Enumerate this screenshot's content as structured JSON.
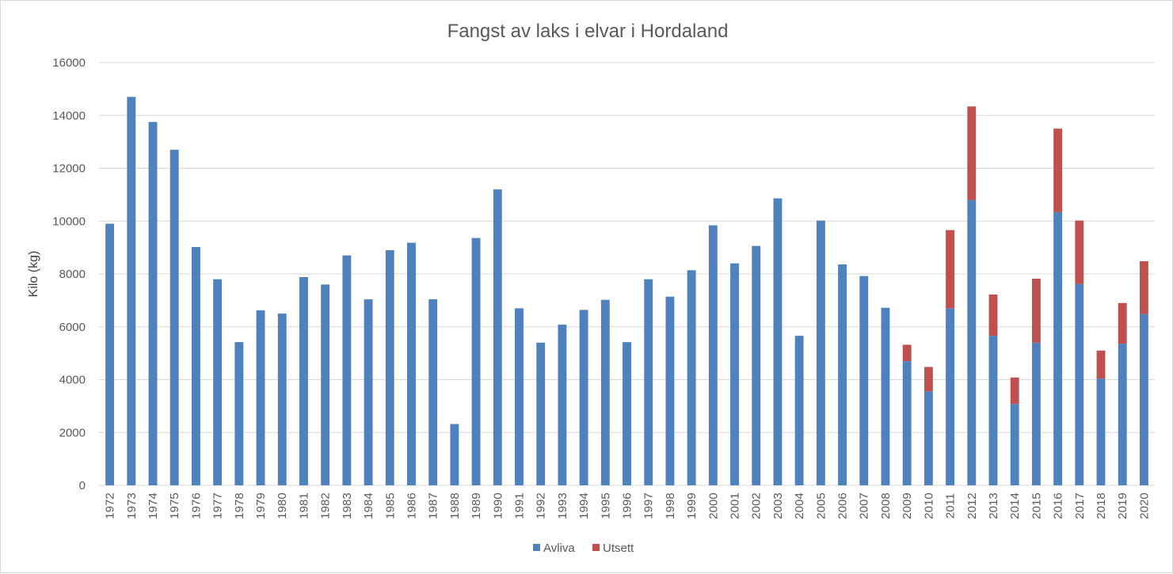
{
  "chart_data": {
    "type": "bar",
    "stacked": true,
    "title": "Fangst av laks i elvar i Hordaland",
    "xlabel": "",
    "ylabel": "Kilo (kg)",
    "ylim": [
      0,
      16000
    ],
    "yticks": [
      0,
      2000,
      4000,
      6000,
      8000,
      10000,
      12000,
      14000,
      16000
    ],
    "grid": true,
    "legend_position": "bottom",
    "categories": [
      "1972",
      "1973",
      "1974",
      "1975",
      "1976",
      "1977",
      "1978",
      "1979",
      "1980",
      "1981",
      "1982",
      "1983",
      "1984",
      "1985",
      "1986",
      "1987",
      "1988",
      "1989",
      "1990",
      "1991",
      "1992",
      "1993",
      "1994",
      "1995",
      "1996",
      "1997",
      "1998",
      "1999",
      "2000",
      "2001",
      "2002",
      "2003",
      "2004",
      "2005",
      "2006",
      "2007",
      "2008",
      "2009",
      "2010",
      "2011",
      "2012",
      "2013",
      "2014",
      "2015",
      "2016",
      "2017",
      "2018",
      "2019",
      "2020"
    ],
    "series": [
      {
        "name": "Avliva",
        "color": "#4f81bd",
        "values": [
          9900,
          14700,
          13750,
          12700,
          9020,
          7800,
          5420,
          6620,
          6500,
          7880,
          7600,
          8700,
          7040,
          8900,
          9180,
          7040,
          2320,
          9360,
          11200,
          6700,
          5400,
          6080,
          6640,
          7020,
          5420,
          7800,
          7140,
          8140,
          9840,
          8400,
          9060,
          10860,
          5660,
          10020,
          8360,
          7920,
          6720,
          4700,
          3560,
          6700,
          10800,
          5660,
          3080,
          5400,
          10340,
          7620,
          4040,
          5360,
          6480
        ]
      },
      {
        "name": "Utsett",
        "color": "#c0504d",
        "values": [
          0,
          0,
          0,
          0,
          0,
          0,
          0,
          0,
          0,
          0,
          0,
          0,
          0,
          0,
          0,
          0,
          0,
          0,
          0,
          0,
          0,
          0,
          0,
          0,
          0,
          0,
          0,
          0,
          0,
          0,
          0,
          0,
          0,
          0,
          0,
          0,
          0,
          620,
          920,
          2960,
          3540,
          1560,
          1000,
          2420,
          3160,
          2400,
          1060,
          1540,
          2000
        ]
      }
    ]
  }
}
